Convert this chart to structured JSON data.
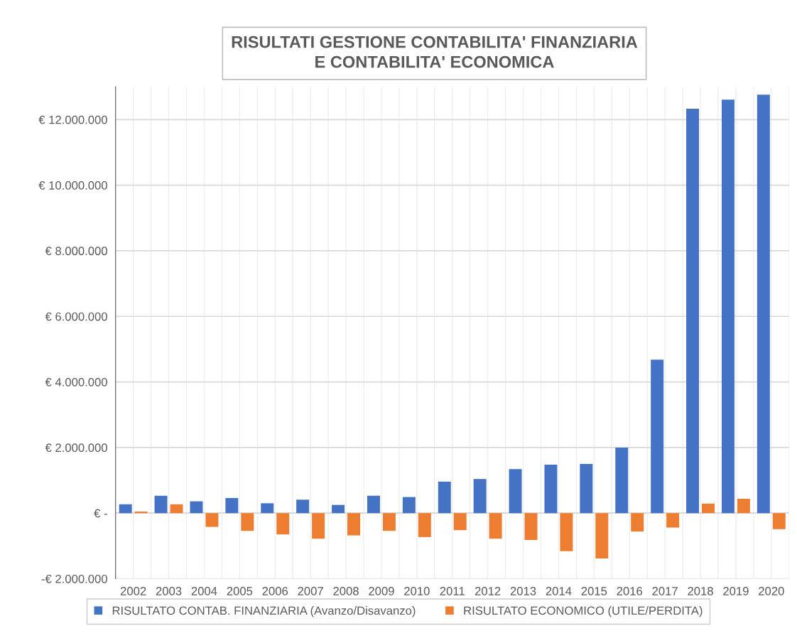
{
  "chart_data": {
    "type": "bar",
    "title": "RISULTATI GESTIONE CONTABILITA' FINANZIARIA\nE CONTABILITA' ECONOMICA",
    "categories": [
      "2002",
      "2003",
      "2004",
      "2005",
      "2006",
      "2007",
      "2008",
      "2009",
      "2010",
      "2011",
      "2012",
      "2013",
      "2014",
      "2015",
      "2016",
      "2017",
      "2018",
      "2019",
      "2020"
    ],
    "series": [
      {
        "name": "RISULTATO CONTAB. FINANZIARIA (Avanzo/Disavanzo)",
        "color": "#4472c4",
        "values": [
          270000,
          530000,
          360000,
          460000,
          300000,
          410000,
          250000,
          530000,
          490000,
          960000,
          1040000,
          1340000,
          1480000,
          1500000,
          2000000,
          4680000,
          12330000,
          12610000,
          12760000
        ]
      },
      {
        "name": "RISULTATO ECONOMICO (UTILE/PERDITA)",
        "color": "#ed7d31",
        "values": [
          50000,
          270000,
          -420000,
          -540000,
          -650000,
          -780000,
          -680000,
          -540000,
          -730000,
          -520000,
          -780000,
          -820000,
          -1160000,
          -1380000,
          -560000,
          -440000,
          290000,
          440000,
          -490000
        ]
      }
    ],
    "ylim": [
      -2000000,
      13000000
    ],
    "yticks": [
      {
        "value": -2000000,
        "label": "-€ 2.000.000"
      },
      {
        "value": 0,
        "label": "€ -"
      },
      {
        "value": 2000000,
        "label": "€ 2.000.000"
      },
      {
        "value": 4000000,
        "label": "€ 4.000.000"
      },
      {
        "value": 6000000,
        "label": "€ 6.000.000"
      },
      {
        "value": 8000000,
        "label": "€ 8.000.000"
      },
      {
        "value": 10000000,
        "label": "€ 10.000.000"
      },
      {
        "value": 12000000,
        "label": "€ 12.000.000"
      }
    ],
    "grid": true,
    "legend": "bottom"
  }
}
